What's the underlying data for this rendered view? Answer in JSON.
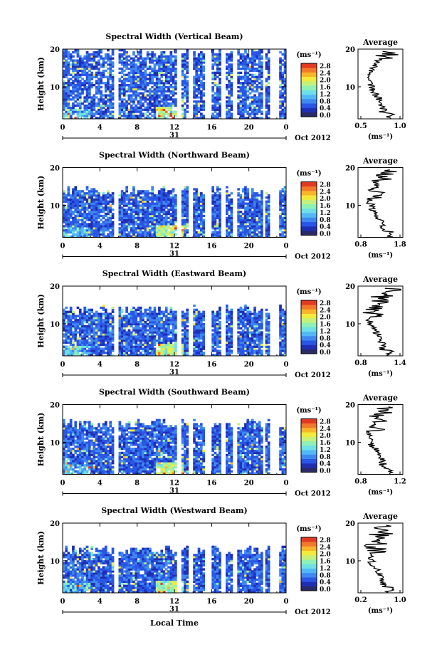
{
  "page": {
    "xlabel": "Local Time"
  },
  "chart_data": [
    {
      "type": "heatmap",
      "title": "Spectral Width (Vertical Beam)",
      "ylabel": "Height (km)",
      "yticks": [
        "10",
        "20"
      ],
      "xticks": [
        "0",
        "4",
        "8",
        "12",
        "16",
        "20",
        "0"
      ],
      "day_label": "31",
      "month_label": "Oct 2012",
      "colorbar": {
        "unit": "(ms⁻¹)",
        "ticks": [
          "0.0",
          "0.4",
          "0.8",
          "1.2",
          "1.6",
          "2.0",
          "2.4",
          "2.8"
        ]
      },
      "average": {
        "title": "Average",
        "xlabel": "(ms⁻¹)",
        "xticks": [
          "0.5",
          "1.0"
        ],
        "yticks": [
          "10",
          "20"
        ]
      },
      "mode": "vertical",
      "maxTop": 19.5
    },
    {
      "type": "heatmap",
      "title": "Spectral Width (Northward Beam)",
      "ylabel": "Height (km)",
      "yticks": [
        "10",
        "20"
      ],
      "xticks": [
        "0",
        "4",
        "8",
        "12",
        "16",
        "20",
        "0"
      ],
      "day_label": "31",
      "month_label": "Oct 2012",
      "colorbar": {
        "unit": "(ms⁻¹)",
        "ticks": [
          "0.0",
          "0.4",
          "0.8",
          "1.2",
          "1.6",
          "2.0",
          "2.4",
          "2.8"
        ]
      },
      "average": {
        "title": "Average",
        "xlabel": "(ms⁻¹)",
        "xticks": [
          "0.8",
          "1.8"
        ],
        "yticks": [
          "10",
          "20"
        ]
      },
      "mode": "oblique",
      "maxTop": 14
    },
    {
      "type": "heatmap",
      "title": "Spectral Width (Eastward Beam)",
      "ylabel": "Height (km)",
      "yticks": [
        "10",
        "20"
      ],
      "xticks": [
        "0",
        "4",
        "8",
        "12",
        "16",
        "20",
        "0"
      ],
      "day_label": "31",
      "month_label": "Oct 2012",
      "colorbar": {
        "unit": "(ms⁻¹)",
        "ticks": [
          "0.0",
          "0.4",
          "0.8",
          "1.2",
          "1.6",
          "2.0",
          "2.4",
          "2.8"
        ]
      },
      "average": {
        "title": "Average",
        "xlabel": "(ms⁻¹)",
        "xticks": [
          "0.8",
          "1.4"
        ],
        "yticks": [
          "10",
          "20"
        ]
      },
      "mode": "oblique",
      "maxTop": 14
    },
    {
      "type": "heatmap",
      "title": "Spectral Width (Southward Beam)",
      "ylabel": "Height (km)",
      "yticks": [
        "10",
        "20"
      ],
      "xticks": [
        "0",
        "4",
        "8",
        "12",
        "16",
        "20",
        "0"
      ],
      "day_label": "31",
      "month_label": "Oct 2012",
      "colorbar": {
        "unit": "(ms⁻¹)",
        "ticks": [
          "0.0",
          "0.4",
          "0.8",
          "1.2",
          "1.6",
          "2.0",
          "2.4",
          "2.8"
        ]
      },
      "average": {
        "title": "Average",
        "xlabel": "(ms⁻¹)",
        "xticks": [
          "0.8",
          "1.2"
        ],
        "yticks": [
          "10",
          "20"
        ]
      },
      "mode": "oblique",
      "maxTop": 15
    },
    {
      "type": "heatmap",
      "title": "Spectral Width (Westward Beam)",
      "ylabel": "Height (km)",
      "yticks": [
        "10",
        "20"
      ],
      "xticks": [
        "0",
        "4",
        "8",
        "12",
        "16",
        "20",
        "0"
      ],
      "day_label": "31",
      "month_label": "Oct 2012",
      "colorbar": {
        "unit": "(ms⁻¹)",
        "ticks": [
          "0.0",
          "0.4",
          "0.8",
          "1.2",
          "1.6",
          "2.0",
          "2.4",
          "2.8"
        ]
      },
      "average": {
        "title": "Average",
        "xlabel": "(ms⁻¹)",
        "xticks": [
          "0.2",
          "1.0"
        ],
        "yticks": [
          "10",
          "20"
        ]
      },
      "mode": "oblique",
      "maxTop": 13
    }
  ]
}
